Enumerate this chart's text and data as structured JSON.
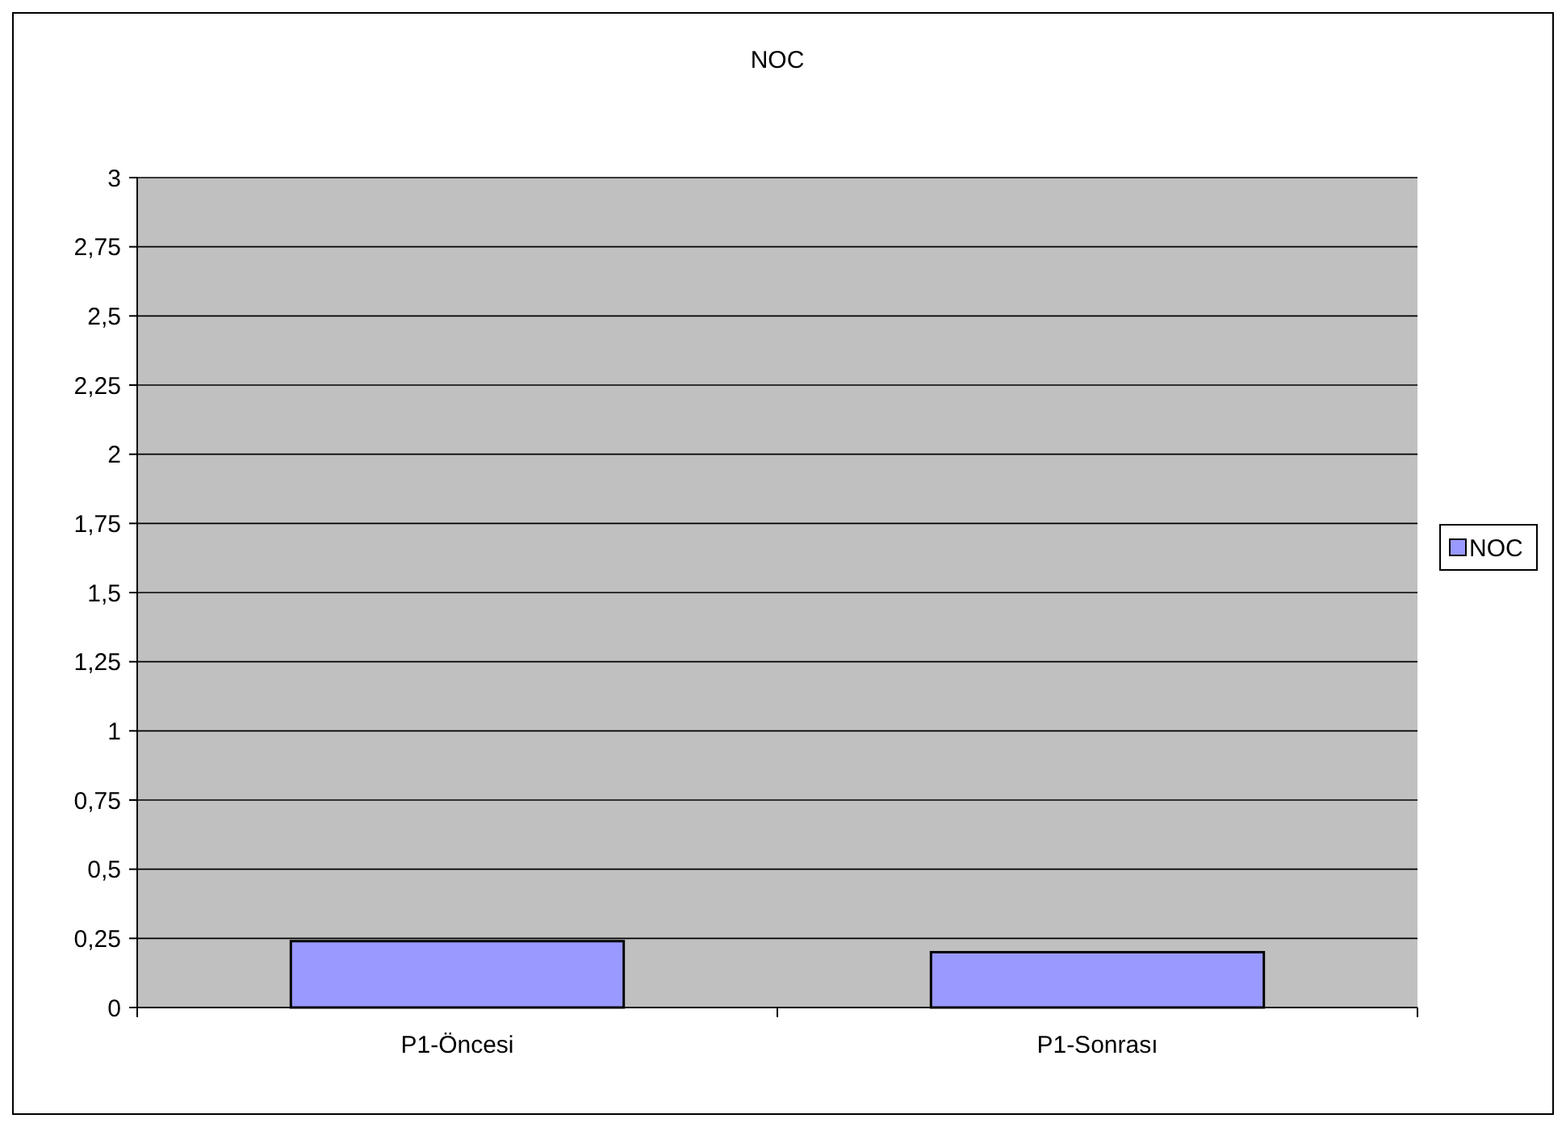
{
  "chart_data": {
    "type": "bar",
    "title": "NOC",
    "categories": [
      "P1-Öncesi",
      "P1-Sonrası"
    ],
    "series": [
      {
        "name": "NOC",
        "color": "#9999ff",
        "values": [
          0.24,
          0.2
        ]
      }
    ],
    "ylim": [
      0,
      3
    ],
    "yticks": [
      0,
      {
        "value": 0.25,
        "label": "0,25"
      },
      {
        "value": 0.5,
        "label": "0,5"
      },
      {
        "value": 0.75,
        "label": "0,75"
      },
      1,
      {
        "value": 1.25,
        "label": "1,25"
      },
      {
        "value": 1.5,
        "label": "1,5"
      },
      {
        "value": 1.75,
        "label": "1,75"
      },
      2,
      {
        "value": 2.25,
        "label": "2,25"
      },
      {
        "value": 2.5,
        "label": "2,5"
      },
      {
        "value": 2.75,
        "label": "2,75"
      },
      3
    ],
    "grid": "y",
    "legend": "right"
  }
}
